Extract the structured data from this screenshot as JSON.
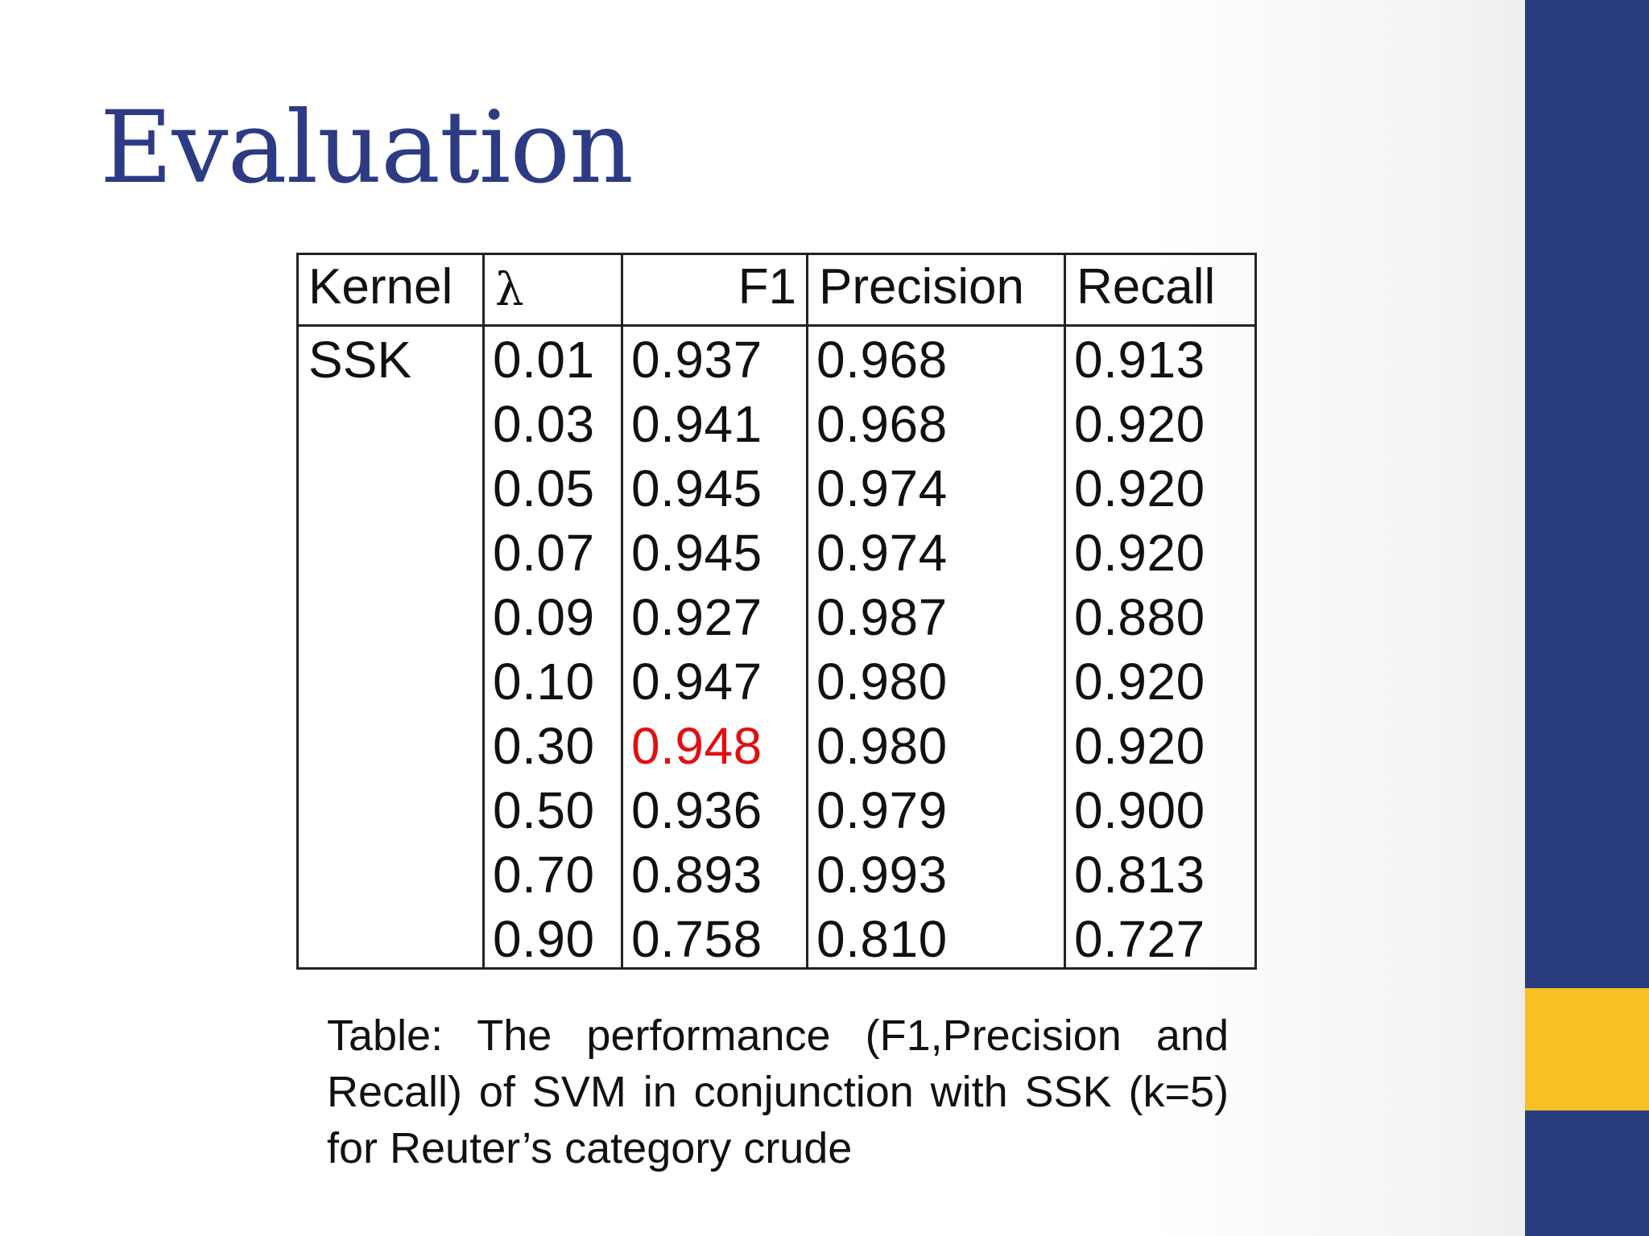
{
  "slide": {
    "title": "Evaluation"
  },
  "colors": {
    "title": "#2c3b84",
    "sidebar": "#293d80",
    "accent": "#f8c024",
    "highlight": "#e01010"
  },
  "table": {
    "headers": {
      "kernel": "Kernel",
      "lambda": "λ",
      "f1": "F1",
      "precision": "Precision",
      "recall": "Recall"
    },
    "kernel": "SSK",
    "rows": [
      {
        "lambda": "0.01",
        "f1": "0.937",
        "precision": "0.968",
        "recall": "0.913"
      },
      {
        "lambda": "0.03",
        "f1": "0.941",
        "precision": "0.968",
        "recall": "0.920"
      },
      {
        "lambda": "0.05",
        "f1": "0.945",
        "precision": "0.974",
        "recall": "0.920"
      },
      {
        "lambda": "0.07",
        "f1": "0.945",
        "precision": "0.974",
        "recall": "0.920"
      },
      {
        "lambda": "0.09",
        "f1": "0.927",
        "precision": "0.987",
        "recall": "0.880"
      },
      {
        "lambda": "0.10",
        "f1": "0.947",
        "precision": "0.980",
        "recall": "0.920"
      },
      {
        "lambda": "0.30",
        "f1": "0.948",
        "precision": "0.980",
        "recall": "0.920"
      },
      {
        "lambda": "0.50",
        "f1": "0.936",
        "precision": "0.979",
        "recall": "0.900"
      },
      {
        "lambda": "0.70",
        "f1": "0.893",
        "precision": "0.993",
        "recall": "0.813"
      },
      {
        "lambda": "0.90",
        "f1": "0.758",
        "precision": "0.810",
        "recall": "0.727"
      }
    ],
    "highlight_row": 6
  },
  "caption": "Table: The performance (F1,Precision and Recall) of SVM in conjunction with SSK (k=5) for Reuter’s category crude"
}
